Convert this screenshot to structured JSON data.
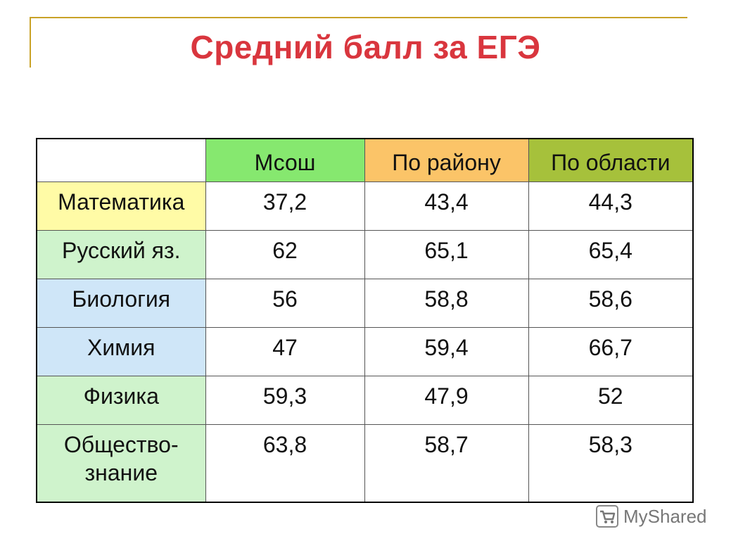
{
  "title": "Средний балл за ЕГЭ",
  "table": {
    "headers": [
      "",
      "Мсош",
      "По району",
      "По области"
    ],
    "header_colors": [
      "#ffffff",
      "#86e86f",
      "#fbc468",
      "#a6c13b"
    ],
    "rows": [
      {
        "subject": "Математика",
        "color": "#fffba6",
        "values": [
          "37,2",
          "43,4",
          "44,3"
        ]
      },
      {
        "subject": "Русский яз.",
        "color": "#cff3cc",
        "values": [
          "62",
          "65,1",
          "65,4"
        ]
      },
      {
        "subject": "Биология",
        "color": "#cfe6f8",
        "values": [
          "56",
          "58,8",
          "58,6"
        ]
      },
      {
        "subject": "Химия",
        "color": "#cfe6f8",
        "values": [
          "47",
          "59,4",
          "66,7"
        ]
      },
      {
        "subject": "Физика",
        "color": "#cff3cc",
        "values": [
          "59,3",
          "47,9",
          "52"
        ]
      },
      {
        "subject_line1": "Общество-",
        "subject_line2": "знание",
        "color": "#cff3cc",
        "values": [
          "63,8",
          "58,7",
          "58,3"
        ]
      }
    ]
  },
  "watermark": {
    "text": "MyShared",
    "icon": "shopping-cart-icon"
  }
}
